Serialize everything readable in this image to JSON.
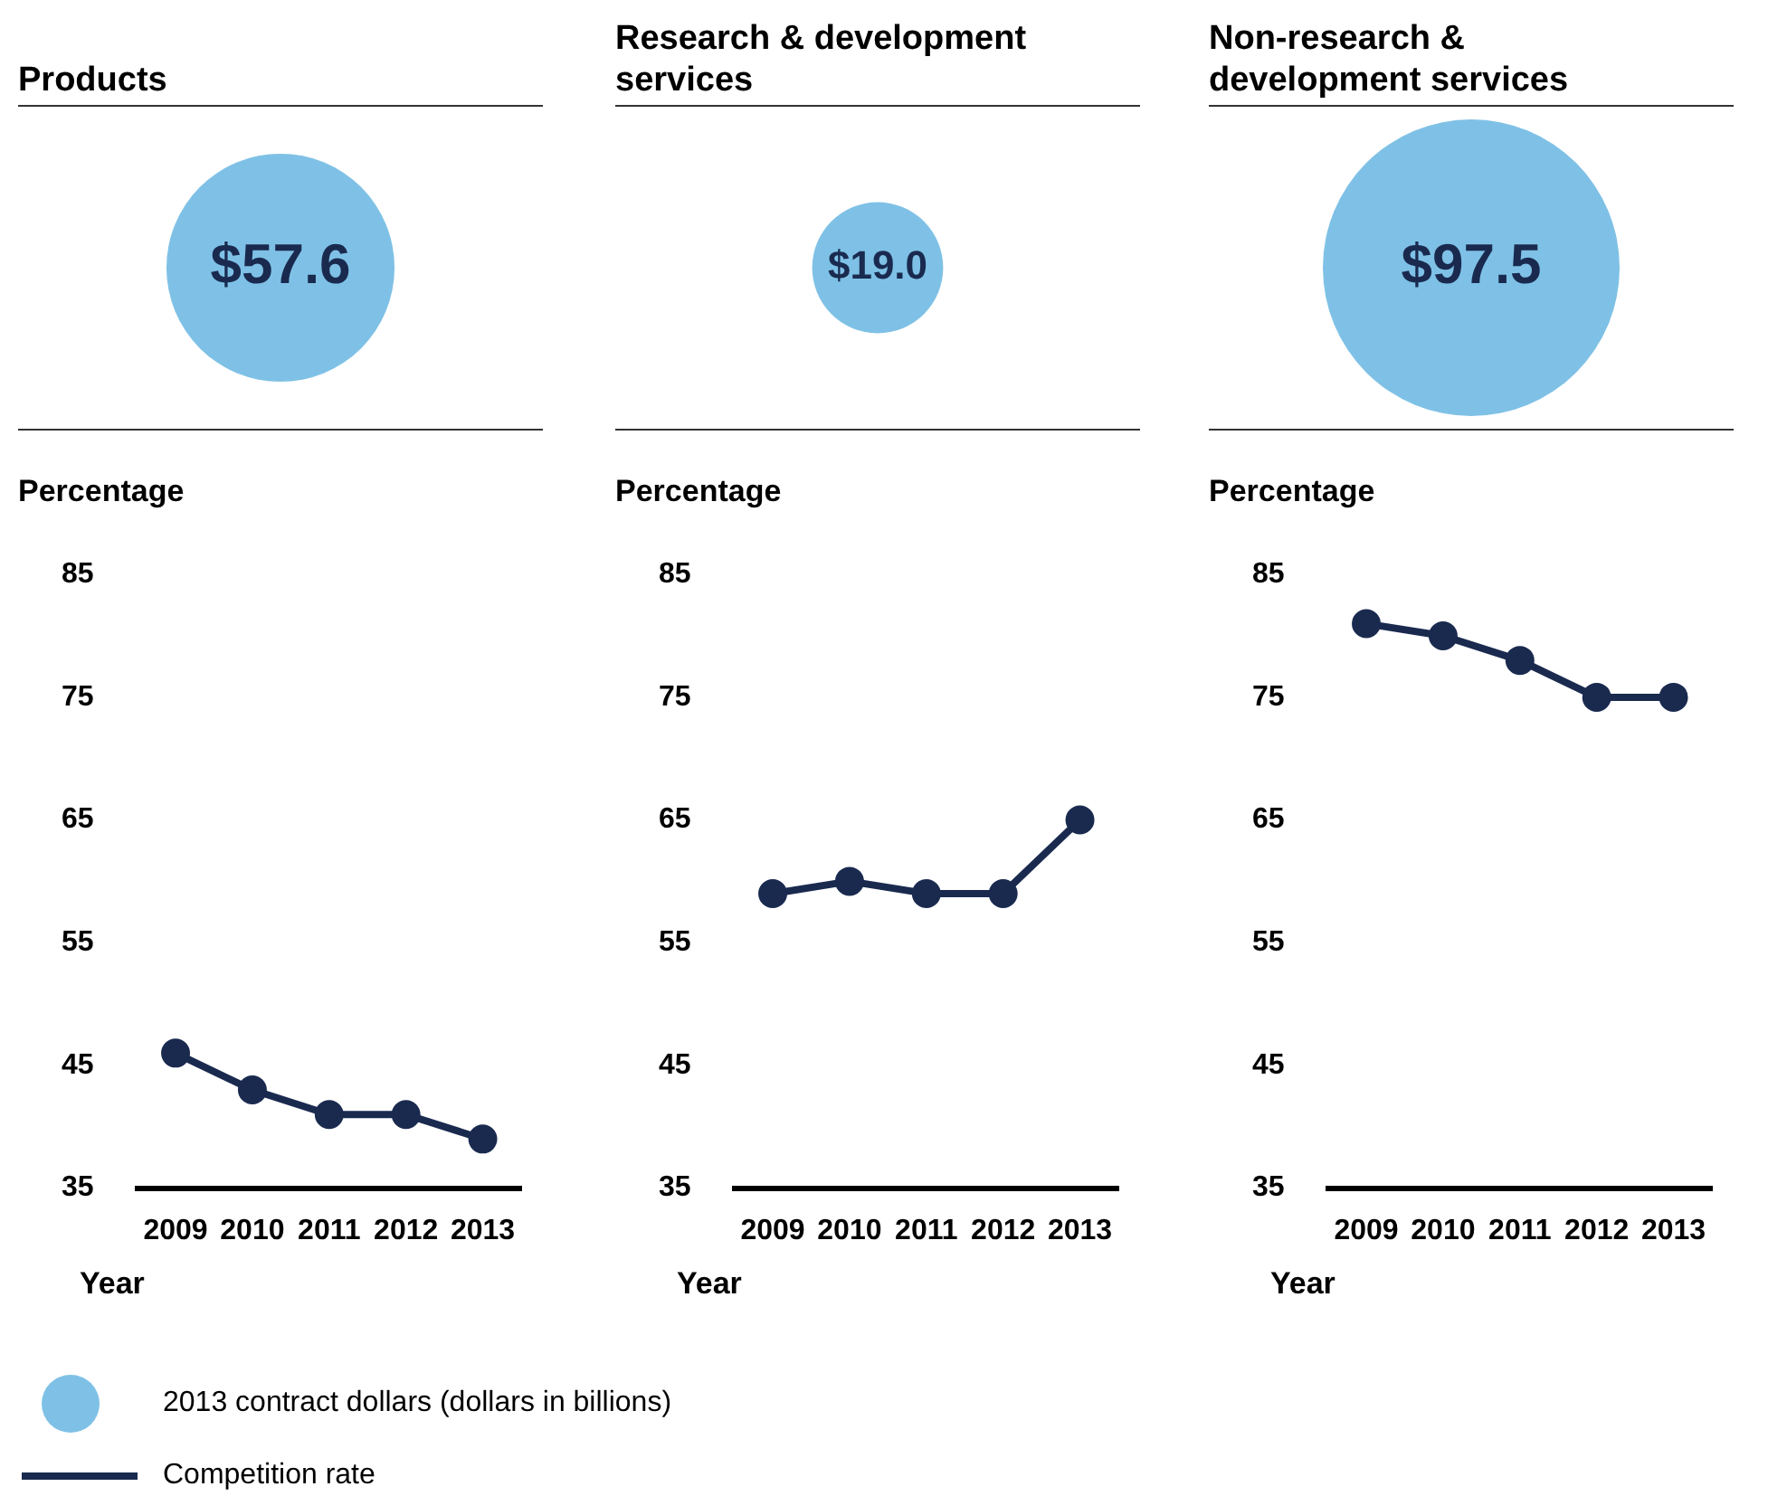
{
  "chart_data": [
    {
      "type": "other",
      "categories": [
        "Products",
        "Research & development services",
        "Non-research & development services"
      ],
      "legend": "bottom",
      "series": [
        {
          "name": "2013 contract dollars (dollars in billions)",
          "color": "#7fc1e6",
          "values": [
            57.6,
            19.0,
            97.5
          ],
          "value_labels": [
            "$57.6",
            "$19.0",
            "$97.5"
          ]
        }
      ]
    },
    {
      "type": "line",
      "categories": [
        "2009",
        "2010",
        "2011",
        "2012",
        "2013"
      ],
      "ylabel": "Percentage",
      "xlabel": "Year",
      "ylim": [
        35,
        85
      ],
      "yticks": [
        35,
        45,
        55,
        65,
        75,
        85
      ],
      "marker": "circle",
      "legend": "bottom",
      "series": [
        {
          "name": "Competition rate",
          "color": "#1a2a4f",
          "values": [
            46,
            43,
            41,
            41,
            39
          ]
        }
      ]
    },
    {
      "type": "line",
      "categories": [
        "2009",
        "2010",
        "2011",
        "2012",
        "2013"
      ],
      "ylabel": "Percentage",
      "xlabel": "Year",
      "ylim": [
        35,
        85
      ],
      "yticks": [
        35,
        45,
        55,
        65,
        75,
        85
      ],
      "marker": "circle",
      "series": [
        {
          "color": "#1a2a4f",
          "values": [
            59,
            60,
            59,
            59,
            65
          ]
        }
      ]
    },
    {
      "type": "line",
      "categories": [
        "2009",
        "2010",
        "2011",
        "2012",
        "2013"
      ],
      "ylabel": "Percentage",
      "xlabel": "Year",
      "ylim": [
        35,
        85
      ],
      "yticks": [
        35,
        45,
        55,
        65,
        75,
        85
      ],
      "marker": "circle",
      "series": [
        {
          "color": "#1a2a4f",
          "values": [
            81,
            80,
            78,
            75,
            75
          ]
        }
      ]
    }
  ]
}
